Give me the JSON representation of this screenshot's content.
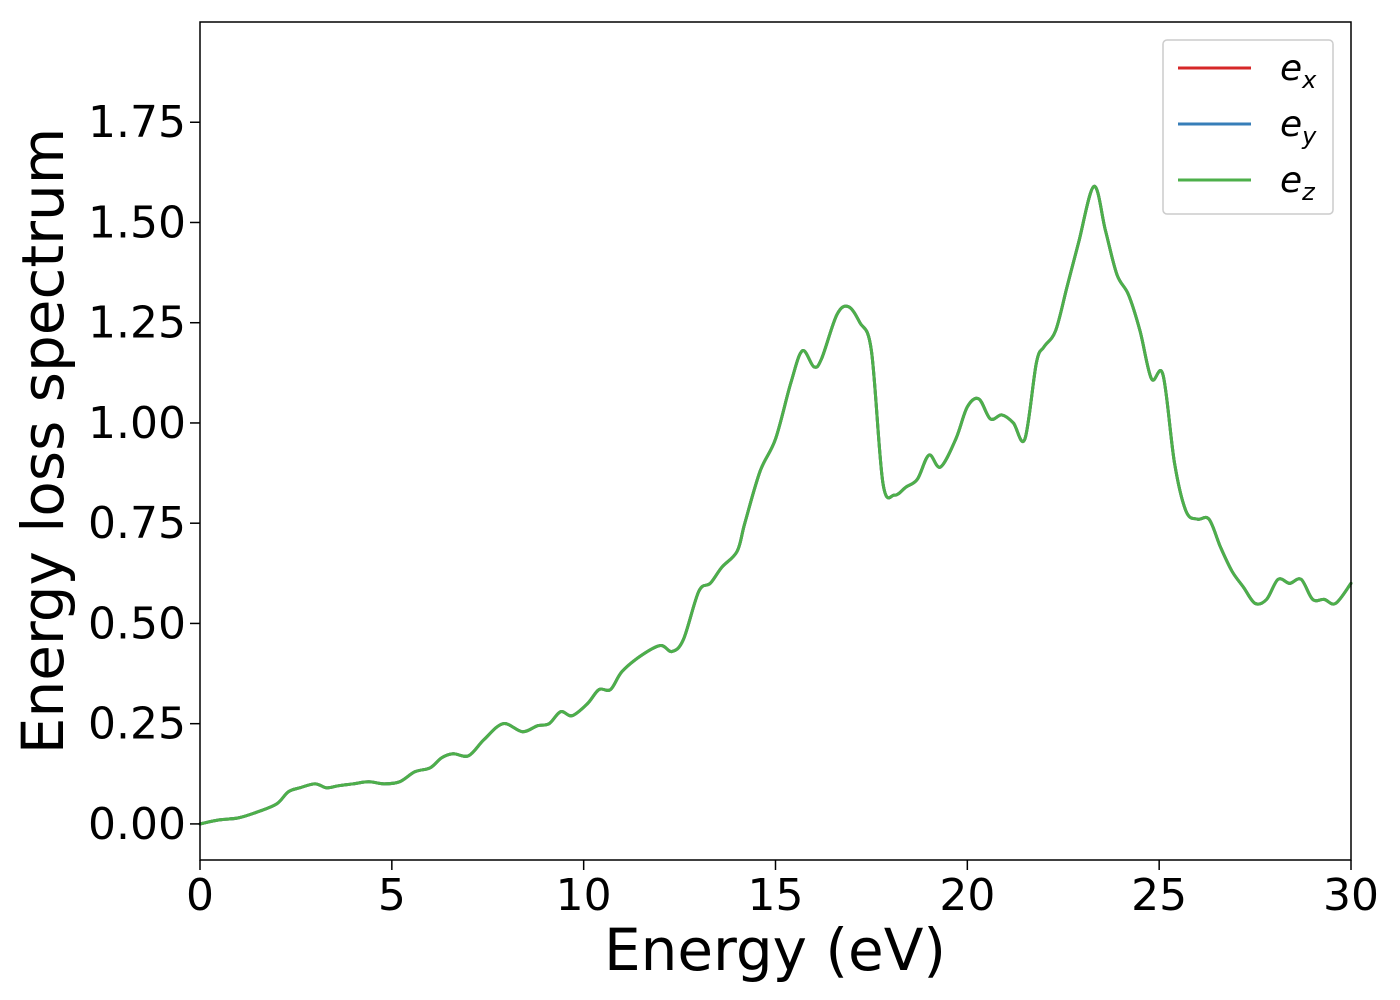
{
  "chart_data": {
    "type": "line",
    "xlabel": "Energy (eV)",
    "ylabel": "Energy loss spectrum",
    "xlim": [
      0,
      30
    ],
    "ylim": [
      -0.09,
      2.0
    ],
    "xticks": [
      0,
      5,
      10,
      15,
      20,
      25,
      30
    ],
    "xtick_labels": [
      "0",
      "5",
      "10",
      "15",
      "20",
      "25",
      "30"
    ],
    "yticks": [
      0.0,
      0.25,
      0.5,
      0.75,
      1.0,
      1.25,
      1.5,
      1.75
    ],
    "ytick_labels": [
      "0.00",
      "0.25",
      "0.50",
      "0.75",
      "1.00",
      "1.25",
      "1.50",
      "1.75"
    ],
    "grid": false,
    "legend_position": "top-right",
    "x": [
      0,
      0.5,
      1,
      1.5,
      2,
      2.3,
      2.6,
      3,
      3.3,
      3.6,
      4,
      4.4,
      4.8,
      5.2,
      5.6,
      6,
      6.3,
      6.6,
      7,
      7.4,
      7.9,
      8.4,
      8.8,
      9.1,
      9.4,
      9.7,
      10.1,
      10.4,
      10.7,
      11,
      11.5,
      12,
      12.3,
      12.6,
      13,
      13.3,
      13.6,
      14,
      14.2,
      14.6,
      15,
      15.4,
      15.7,
      16,
      16.2,
      16.6,
      16.9,
      17.2,
      17.5,
      17.8,
      18.1,
      18.4,
      18.7,
      19,
      19.3,
      19.7,
      20,
      20.3,
      20.6,
      20.9,
      21.2,
      21.5,
      21.8,
      22,
      22.3,
      22.6,
      22.9,
      23.3,
      23.6,
      23.9,
      24.2,
      24.5,
      24.8,
      25.1,
      25.4,
      25.7,
      26,
      26.3,
      26.6,
      26.9,
      27.2,
      27.5,
      27.8,
      28.1,
      28.4,
      28.7,
      29,
      29.3,
      29.6,
      30
    ],
    "series": [
      {
        "name": "e_x",
        "label_base": "e",
        "label_sub": "x",
        "color": "#d62728",
        "y": [
          0.0,
          0.01,
          0.015,
          0.03,
          0.05,
          0.08,
          0.09,
          0.1,
          0.09,
          0.095,
          0.1,
          0.105,
          0.1,
          0.105,
          0.13,
          0.14,
          0.165,
          0.175,
          0.17,
          0.21,
          0.25,
          0.23,
          0.245,
          0.25,
          0.28,
          0.27,
          0.3,
          0.335,
          0.335,
          0.38,
          0.42,
          0.445,
          0.43,
          0.46,
          0.58,
          0.6,
          0.64,
          0.68,
          0.75,
          0.88,
          0.96,
          1.1,
          1.18,
          1.14,
          1.16,
          1.27,
          1.29,
          1.25,
          1.18,
          0.85,
          0.82,
          0.84,
          0.86,
          0.92,
          0.89,
          0.96,
          1.04,
          1.06,
          1.01,
          1.02,
          1.0,
          0.96,
          1.15,
          1.19,
          1.23,
          1.34,
          1.45,
          1.59,
          1.48,
          1.37,
          1.32,
          1.23,
          1.11,
          1.12,
          0.9,
          0.78,
          0.76,
          0.76,
          0.69,
          0.63,
          0.59,
          0.55,
          0.56,
          0.61,
          0.6,
          0.61,
          0.56,
          0.56,
          0.55,
          0.6
        ]
      },
      {
        "name": "e_y",
        "label_base": "e",
        "label_sub": "y",
        "color": "#377eb8",
        "y": [
          0.0,
          0.01,
          0.015,
          0.03,
          0.05,
          0.08,
          0.09,
          0.1,
          0.09,
          0.095,
          0.1,
          0.105,
          0.1,
          0.105,
          0.13,
          0.14,
          0.165,
          0.175,
          0.17,
          0.21,
          0.25,
          0.23,
          0.245,
          0.25,
          0.28,
          0.27,
          0.3,
          0.335,
          0.335,
          0.38,
          0.42,
          0.445,
          0.43,
          0.46,
          0.58,
          0.6,
          0.64,
          0.68,
          0.75,
          0.88,
          0.96,
          1.1,
          1.18,
          1.14,
          1.16,
          1.27,
          1.29,
          1.25,
          1.18,
          0.85,
          0.82,
          0.84,
          0.86,
          0.92,
          0.89,
          0.96,
          1.04,
          1.06,
          1.01,
          1.02,
          1.0,
          0.96,
          1.15,
          1.19,
          1.23,
          1.34,
          1.45,
          1.59,
          1.48,
          1.37,
          1.32,
          1.23,
          1.11,
          1.12,
          0.9,
          0.78,
          0.76,
          0.76,
          0.69,
          0.63,
          0.59,
          0.55,
          0.56,
          0.61,
          0.6,
          0.61,
          0.56,
          0.56,
          0.55,
          0.6
        ]
      },
      {
        "name": "e_z",
        "label_base": "e",
        "label_sub": "z",
        "color": "#4daf4a",
        "y": [
          0.0,
          0.01,
          0.015,
          0.03,
          0.05,
          0.08,
          0.09,
          0.1,
          0.09,
          0.095,
          0.1,
          0.105,
          0.1,
          0.105,
          0.13,
          0.14,
          0.165,
          0.175,
          0.17,
          0.21,
          0.25,
          0.23,
          0.245,
          0.25,
          0.28,
          0.27,
          0.3,
          0.335,
          0.335,
          0.38,
          0.42,
          0.445,
          0.43,
          0.46,
          0.58,
          0.6,
          0.64,
          0.68,
          0.75,
          0.88,
          0.96,
          1.1,
          1.18,
          1.14,
          1.16,
          1.27,
          1.29,
          1.25,
          1.18,
          0.85,
          0.82,
          0.84,
          0.86,
          0.92,
          0.89,
          0.96,
          1.04,
          1.06,
          1.01,
          1.02,
          1.0,
          0.96,
          1.15,
          1.19,
          1.23,
          1.34,
          1.45,
          1.59,
          1.48,
          1.37,
          1.32,
          1.23,
          1.11,
          1.12,
          0.9,
          0.78,
          0.76,
          0.76,
          0.69,
          0.63,
          0.59,
          0.55,
          0.56,
          0.61,
          0.6,
          0.61,
          0.56,
          0.56,
          0.55,
          0.6
        ]
      }
    ]
  }
}
